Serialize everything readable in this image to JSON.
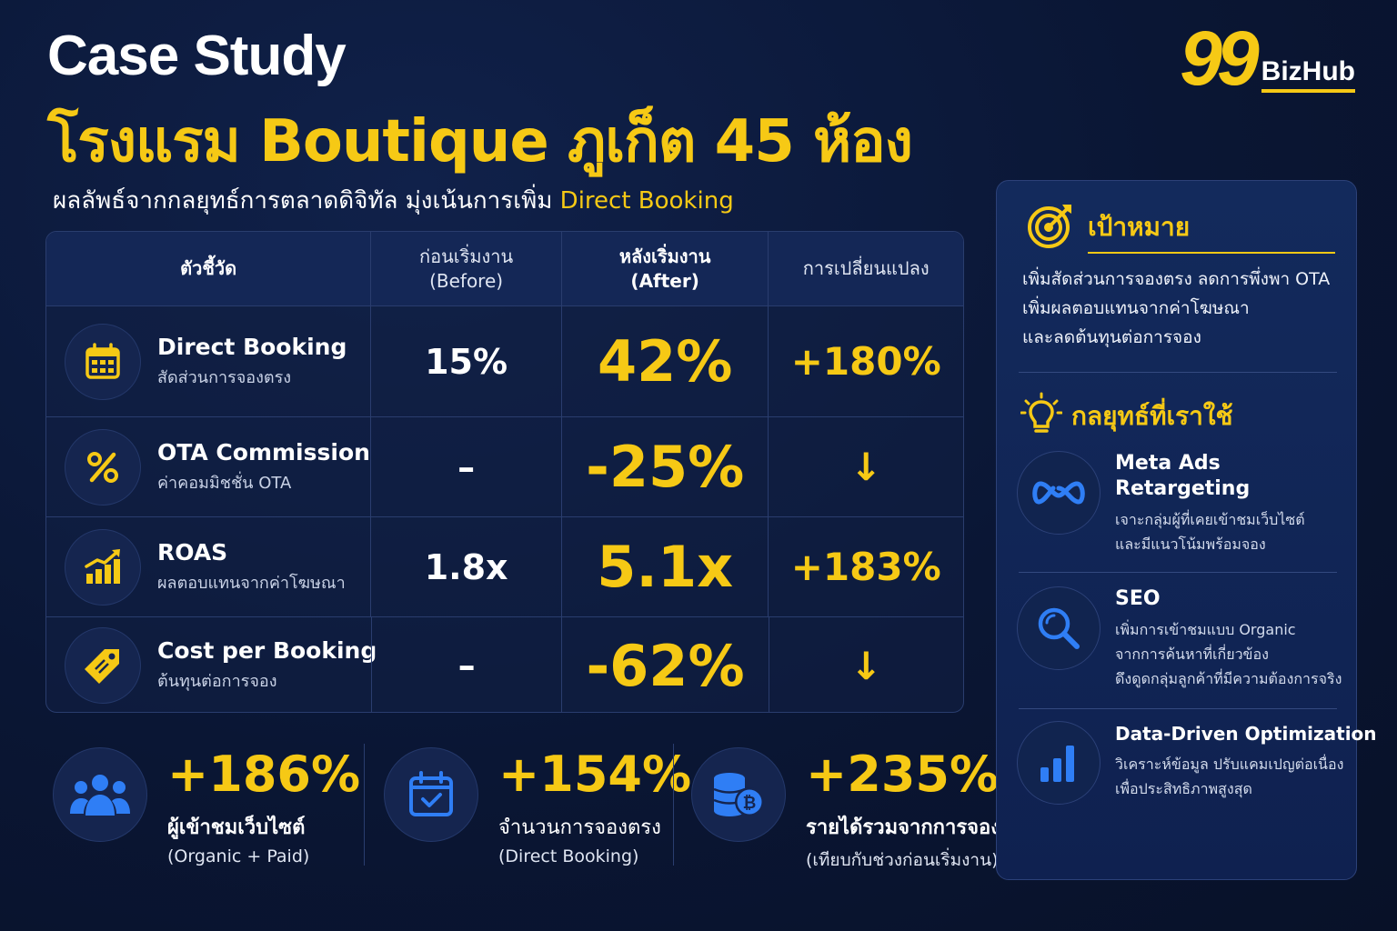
{
  "header": {
    "title_en": "Case Study",
    "title_th": "โรงแรม Boutique ภูเก็ต 45 ห้อง",
    "subtitle_main": "ผลลัพธ์จากกลยุทธ์การตลาดดิจิทัล มุ่งเน้นการเพิ่ม",
    "subtitle_highlight": "Direct Booking"
  },
  "logo": {
    "number": "99",
    "text": "BizHub"
  },
  "colors": {
    "accent": "#f6c915",
    "background": "#0b1736",
    "icon_blue": "#2f7ef5"
  },
  "table": {
    "headers": {
      "metric": "ตัวชี้วัด",
      "before": "ก่อนเริ่มงาน",
      "before_en": "(Before)",
      "after": "หลังเริ่มงาน",
      "after_en": "(After)",
      "change": "การเปลี่ยนแปลง"
    },
    "rows": [
      {
        "icon": "calendar-icon",
        "name": "Direct Booking",
        "sub": "สัดส่วนการจองตรง",
        "before": "15%",
        "after": "42%",
        "change": "+180%"
      },
      {
        "icon": "percent-icon",
        "name": "OTA Commission",
        "sub": "ค่าคอมมิชชั่น OTA",
        "before": "–",
        "after": "-25%",
        "change": "↓"
      },
      {
        "icon": "growth-chart-icon",
        "name": "ROAS",
        "sub": "ผลตอบแทนจากค่าโฆษณา",
        "before": "1.8x",
        "after": "5.1x",
        "change": "+183%"
      },
      {
        "icon": "price-tag-icon",
        "name": "Cost per Booking",
        "sub": "ต้นทุนต่อการจอง",
        "before": "–",
        "after": "-62%",
        "change": "↓"
      }
    ]
  },
  "stats": [
    {
      "icon": "users-icon",
      "value": "+186%",
      "label": "ผู้เข้าชมเว็บไซต์",
      "sub": "(Organic + Paid)"
    },
    {
      "icon": "calendar-check-icon",
      "value": "+154%",
      "label": "จำนวนการจองตรง",
      "sub": "(Direct Booking)"
    },
    {
      "icon": "coins-icon",
      "value": "+235%",
      "label": "รายได้รวมจากการจองตรง",
      "sub": "(เทียบกับช่วงก่อนเริ่มงาน)"
    }
  ],
  "goal": {
    "title": "เป้าหมาย",
    "lines": [
      "เพิ่มสัดส่วนการจองตรง ลดการพึ่งพา OTA",
      "เพิ่มผลตอบแทนจากค่าโฆษณา",
      "และลดต้นทุนต่อการจอง"
    ]
  },
  "strategy": {
    "title": "กลยุทธ์ที่เราใช้",
    "items": [
      {
        "icon": "meta-infinity-icon",
        "name_line1": "Meta Ads",
        "name_line2": "Retargeting",
        "desc": [
          "เจาะกลุ่มผู้ที่เคยเข้าชมเว็บไซต์",
          "และมีแนวโน้มพร้อมจอง"
        ]
      },
      {
        "icon": "magnifier-icon",
        "name_line1": "SEO",
        "name_line2": "",
        "desc": [
          "เพิ่มการเข้าชมแบบ Organic",
          "จากการค้นหาที่เกี่ยวข้อง",
          "ดึงดูดกลุ่มลูกค้าที่มีความต้องการจริง"
        ]
      },
      {
        "icon": "bar-chart-icon",
        "name_line1": "Data-Driven Optimization",
        "name_line2": "",
        "desc": [
          "วิเคราะห์ข้อมูล ปรับแคมเปญต่อเนื่อง",
          "เพื่อประสิทธิภาพสูงสุด"
        ]
      }
    ]
  }
}
